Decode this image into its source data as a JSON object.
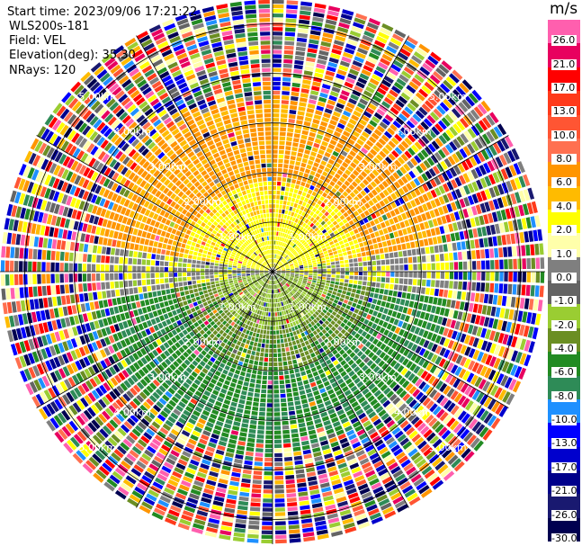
{
  "header": {
    "start_time": "Start time: 2023/09/06 17:21:22",
    "instrument": "WLS200s-181",
    "field": "Field: VEL",
    "elevation": "Elevation(deg): 35.30",
    "nrays": "NRays: 120"
  },
  "colorbar": {
    "unit": "m/s",
    "ticks": [
      "26.0",
      "21.0",
      "17.0",
      "13.0",
      "10.0",
      "8.0",
      "6.0",
      "4.0",
      "2.0",
      "1.0",
      "0.0",
      "-1.0",
      "-2.0",
      "-4.0",
      "-6.0",
      "-8.0",
      "-10.0",
      "-13.0",
      "-17.0",
      "-21.0",
      "-26.0",
      "-30.0"
    ],
    "colors": [
      "#ff5fae",
      "#e8005f",
      "#ff0000",
      "#ff3a1a",
      "#ff5533",
      "#ff7050",
      "#ff9500",
      "#ffbb00",
      "#ffff00",
      "#ffffaa",
      "#7f7f7f",
      "#646464",
      "#9acd32",
      "#6b8e23",
      "#228b22",
      "#2e8b57",
      "#1e90ff",
      "#0000ff",
      "#0000cd",
      "#00008b",
      "#191970",
      "#000050"
    ]
  },
  "chart_data": {
    "type": "heatmap",
    "projection": "polar PPI",
    "field": "VEL",
    "unit": "m/s",
    "nrays": 120,
    "elevation_deg": 35.3,
    "range_rings_km": [
      1.0,
      2.0,
      3.0,
      4.0,
      5.0
    ],
    "ring_labels": [
      "1.00km",
      "2.00km",
      "3.00km",
      "4.00km",
      "5.00km"
    ],
    "grid": true,
    "colorbar_range": [
      -30.0,
      26.0
    ]
  }
}
